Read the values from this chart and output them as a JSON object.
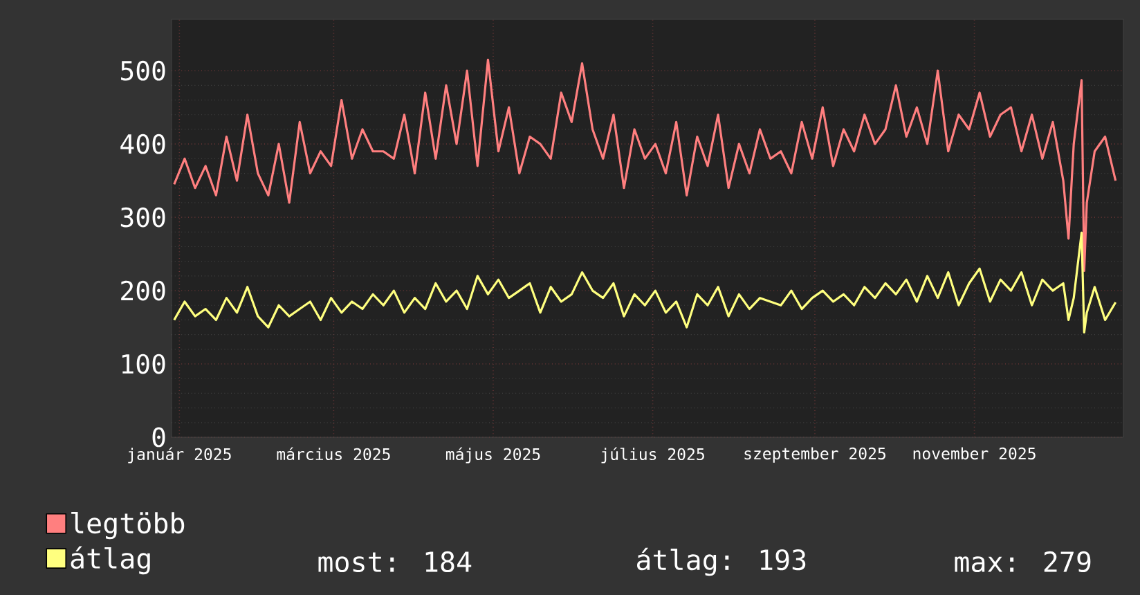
{
  "chart_data": {
    "type": "line",
    "x": [
      "2024-12-30",
      "2025-01-03",
      "2025-01-07",
      "2025-01-11",
      "2025-01-15",
      "2025-01-19",
      "2025-01-23",
      "2025-01-27",
      "2025-01-31",
      "2025-02-04",
      "2025-02-08",
      "2025-02-12",
      "2025-02-16",
      "2025-02-20",
      "2025-02-24",
      "2025-02-28",
      "2025-03-04",
      "2025-03-08",
      "2025-03-12",
      "2025-03-16",
      "2025-03-20",
      "2025-03-24",
      "2025-03-28",
      "2025-04-01",
      "2025-04-05",
      "2025-04-09",
      "2025-04-13",
      "2025-04-17",
      "2025-04-21",
      "2025-04-25",
      "2025-04-29",
      "2025-05-03",
      "2025-05-07",
      "2025-05-11",
      "2025-05-15",
      "2025-05-19",
      "2025-05-23",
      "2025-05-27",
      "2025-05-31",
      "2025-06-04",
      "2025-06-08",
      "2025-06-12",
      "2025-06-16",
      "2025-06-20",
      "2025-06-24",
      "2025-06-28",
      "2025-07-02",
      "2025-07-06",
      "2025-07-10",
      "2025-07-14",
      "2025-07-18",
      "2025-07-22",
      "2025-07-26",
      "2025-07-30",
      "2025-08-03",
      "2025-08-07",
      "2025-08-11",
      "2025-08-15",
      "2025-08-19",
      "2025-08-23",
      "2025-08-27",
      "2025-08-31",
      "2025-09-04",
      "2025-09-08",
      "2025-09-12",
      "2025-09-16",
      "2025-09-20",
      "2025-09-24",
      "2025-09-28",
      "2025-10-02",
      "2025-10-06",
      "2025-10-10",
      "2025-10-14",
      "2025-10-18",
      "2025-10-22",
      "2025-10-26",
      "2025-10-30",
      "2025-11-03",
      "2025-11-07",
      "2025-11-11",
      "2025-11-15",
      "2025-11-19",
      "2025-11-23",
      "2025-11-27",
      "2025-12-01",
      "2025-12-05",
      "2025-12-07",
      "2025-12-09",
      "2025-12-12",
      "2025-12-13",
      "2025-12-14",
      "2025-12-17",
      "2025-12-21",
      "2025-12-25"
    ],
    "series": [
      {
        "name": "legtöbb",
        "color": "#ff7f7f",
        "values": [
          345,
          380,
          340,
          370,
          330,
          410,
          350,
          440,
          360,
          330,
          400,
          320,
          430,
          360,
          390,
          370,
          460,
          380,
          420,
          390,
          390,
          380,
          440,
          360,
          470,
          380,
          480,
          400,
          500,
          370,
          515,
          390,
          450,
          360,
          410,
          400,
          380,
          470,
          430,
          510,
          420,
          380,
          440,
          340,
          420,
          380,
          400,
          360,
          430,
          330,
          410,
          370,
          440,
          340,
          400,
          360,
          420,
          380,
          390,
          360,
          430,
          380,
          450,
          370,
          420,
          390,
          440,
          400,
          420,
          480,
          410,
          450,
          400,
          500,
          390,
          440,
          420,
          470,
          410,
          440,
          450,
          390,
          440,
          380,
          430,
          350,
          271,
          400,
          487,
          227,
          320,
          390,
          410,
          350
        ]
      },
      {
        "name": "átlag",
        "color": "#ffff7f",
        "values": [
          160,
          185,
          165,
          175,
          160,
          190,
          170,
          205,
          165,
          150,
          180,
          165,
          175,
          185,
          160,
          190,
          170,
          185,
          175,
          195,
          180,
          200,
          170,
          190,
          175,
          210,
          185,
          200,
          175,
          220,
          195,
          215,
          190,
          200,
          210,
          170,
          205,
          185,
          195,
          225,
          200,
          190,
          210,
          165,
          195,
          180,
          200,
          170,
          185,
          150,
          195,
          180,
          205,
          165,
          195,
          175,
          190,
          185,
          180,
          200,
          175,
          190,
          200,
          185,
          195,
          180,
          205,
          190,
          210,
          195,
          215,
          185,
          220,
          190,
          225,
          180,
          210,
          230,
          185,
          215,
          200,
          225,
          180,
          215,
          200,
          210,
          160,
          190,
          279,
          143,
          170,
          205,
          160,
          184
        ]
      }
    ],
    "xlim": [
      "2024-12-29",
      "2025-12-28"
    ],
    "xticks": [
      {
        "value": "2025-01-01",
        "label": "január 2025"
      },
      {
        "value": "2025-03-01",
        "label": "március 2025"
      },
      {
        "value": "2025-05-01",
        "label": "május 2025"
      },
      {
        "value": "2025-07-01",
        "label": "július 2025"
      },
      {
        "value": "2025-09-01",
        "label": "szeptember 2025"
      },
      {
        "value": "2025-11-01",
        "label": "november 2025"
      }
    ],
    "ylim": [
      0,
      570
    ],
    "yticks": [
      0,
      100,
      200,
      300,
      400,
      500
    ],
    "grid": true,
    "legend": "bottom left",
    "annotations": [
      "most: 184",
      "átlag: 193",
      "max: 279"
    ]
  }
}
